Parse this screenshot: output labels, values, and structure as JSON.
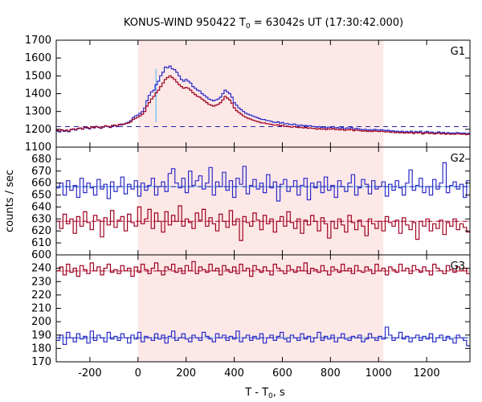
{
  "chart_data": {
    "type": "step-line",
    "title_main": "KONUS-WIND 950422 T",
    "title_sub": "0",
    "title_rest": " = 63042s UT (17:30:42.000)",
    "xlabel_main": "T - T",
    "xlabel_sub": "0",
    "xlabel_rest": ", s",
    "ylabel": "counts / sec",
    "xlim": [
      -340,
      1380
    ],
    "xticks": [
      -200,
      0,
      200,
      400,
      600,
      800,
      1000,
      1200
    ],
    "shaded_interval": [
      0,
      1020
    ],
    "colors": {
      "shade": "#fde8e8",
      "blue_series": "#2b2bc8",
      "red_series": "#a0001e",
      "fit": "#7fc6ec",
      "background_fit": "#e8a8c0"
    },
    "panels": [
      {
        "label": "G1",
        "ylim": [
          1100,
          1700
        ],
        "yticks": [
          1100,
          1200,
          1300,
          1400,
          1500,
          1600,
          1700
        ],
        "background_level": 1215,
        "series": [
          {
            "color": "blue",
            "step": 8,
            "values": [
              1190,
              1185,
              1195,
              1188,
              1192,
              1186,
              1198,
              1200,
              1195,
              1203,
              1205,
              1200,
              1210,
              1207,
              1202,
              1212,
              1208,
              1215,
              1210,
              1205,
              1212,
              1218,
              1215,
              1210,
              1220,
              1222,
              1215,
              1225,
              1230,
              1228,
              1235,
              1240,
              1250,
              1265,
              1275,
              1280,
              1290,
              1300,
              1320,
              1360,
              1390,
              1410,
              1420,
              1450,
              1470,
              1500,
              1520,
              1550,
              1545,
              1555,
              1540,
              1535,
              1520,
              1500,
              1480,
              1470,
              1480,
              1470,
              1460,
              1440,
              1430,
              1420,
              1415,
              1400,
              1390,
              1380,
              1370,
              1365,
              1360,
              1365,
              1370,
              1380,
              1400,
              1420,
              1410,
              1400,
              1380,
              1350,
              1335,
              1320,
              1310,
              1300,
              1290,
              1285,
              1280,
              1275,
              1270,
              1265,
              1260,
              1255,
              1255,
              1250,
              1248,
              1245,
              1240,
              1238,
              1242,
              1235,
              1238,
              1230,
              1232,
              1228,
              1226,
              1230,
              1225,
              1222,
              1224,
              1220,
              1222,
              1218,
              1220,
              1216,
              1215,
              1212,
              1215,
              1210,
              1213,
              1208,
              1212,
              1210,
              1215,
              1208,
              1210,
              1205,
              1210,
              1203,
              1208,
              1205,
              1210,
              1200,
              1205,
              1202,
              1200,
              1198,
              1200,
              1195,
              1198,
              1195,
              1200,
              1197,
              1195,
              1198,
              1195,
              1192,
              1195,
              1190,
              1192,
              1188,
              1190,
              1186,
              1190,
              1185,
              1188,
              1185,
              1190,
              1182,
              1188,
              1185,
              1190,
              1180,
              1185,
              1188,
              1182,
              1185,
              1180,
              1182,
              1186,
              1180,
              1183,
              1178,
              1182,
              1178,
              1180,
              1178,
              1182,
              1180,
              1178,
              1180,
              1176,
              1178
            ]
          },
          {
            "color": "red",
            "step": 8,
            "values": [
              1195,
              1190,
              1198,
              1192,
              1196,
              1190,
              1200,
              1203,
              1198,
              1205,
              1208,
              1202,
              1212,
              1210,
              1205,
              1215,
              1210,
              1217,
              1212,
              1208,
              1214,
              1220,
              1217,
              1212,
              1222,
              1224,
              1218,
              1228,
              1225,
              1230,
              1232,
              1236,
              1242,
              1255,
              1262,
              1268,
              1275,
              1285,
              1300,
              1330,
              1350,
              1370,
              1385,
              1405,
              1420,
              1440,
              1460,
              1480,
              1490,
              1500,
              1490,
              1480,
              1465,
              1450,
              1440,
              1430,
              1435,
              1430,
              1420,
              1405,
              1395,
              1385,
              1380,
              1370,
              1360,
              1350,
              1340,
              1335,
              1330,
              1335,
              1340,
              1350,
              1365,
              1385,
              1375,
              1365,
              1345,
              1320,
              1305,
              1295,
              1285,
              1275,
              1268,
              1262,
              1258,
              1252,
              1248,
              1244,
              1240,
              1236,
              1236,
              1232,
              1230,
              1228,
              1225,
              1223,
              1226,
              1220,
              1223,
              1216,
              1218,
              1214,
              1212,
              1216,
              1212,
              1210,
              1212,
              1208,
              1210,
              1206,
              1208,
              1205,
              1204,
              1201,
              1204,
              1200,
              1203,
              1198,
              1202,
              1200,
              1204,
              1198,
              1200,
              1196,
              1200,
              1194,
              1198,
              1196,
              1200,
              1192,
              1196,
              1194,
              1192,
              1190,
              1192,
              1188,
              1190,
              1187,
              1192,
              1189,
              1187,
              1190,
              1187,
              1185,
              1187,
              1183,
              1185,
              1181,
              1183,
              1180,
              1183,
              1179,
              1181,
              1179,
              1183,
              1176,
              1181,
              1179,
              1183,
              1174,
              1179,
              1181,
              1176,
              1179,
              1174,
              1176,
              1180,
              1174,
              1177,
              1172,
              1176,
              1172,
              1174,
              1172,
              1176,
              1174,
              1172,
              1174,
              1170,
              1172
            ]
          }
        ],
        "spike": {
          "x": 75,
          "y": 1540
        }
      },
      {
        "label": "G2",
        "ylim": [
          600,
          690
        ],
        "yticks": [
          600,
          610,
          620,
          630,
          640,
          650,
          660,
          670,
          680
        ],
        "blue_level": 657,
        "red_level": 628,
        "series": [
          {
            "color": "blue",
            "step": 10,
            "values": [
              656,
              660,
              650,
              662,
              654,
              658,
              648,
              664,
              652,
              660,
              656,
              650,
              663,
              655,
              659,
              647,
              661,
              653,
              657,
              665,
              651,
              659,
              655,
              662,
              649,
              660,
              654,
              658,
              664,
              650,
              657,
              661,
              653,
              668,
              672,
              660,
              656,
              664,
              652,
              670,
              658,
              662,
              666,
              655,
              660,
              673,
              650,
              661,
              657,
              669,
              654,
              662,
              648,
              664,
              659,
              674,
              651,
              658,
              663,
              655,
              660,
              652,
              667,
              656,
              661,
              645,
              659,
              663,
              653,
              657,
              662,
              650,
              658,
              664,
              646,
              660,
              656,
              661,
              652,
              665,
              654,
              658,
              648,
              662,
              657,
              653,
              660,
              667,
              650,
              656,
              663,
              659,
              651,
              662,
              655,
              657,
              661,
              649,
              659,
              654,
              662,
              656,
              650,
              660,
              671,
              654,
              658,
              664,
              652,
              657,
              650,
              663,
              655,
              660,
              677,
              652,
              658,
              661,
              655,
              659,
              648,
              662
            ]
          },
          {
            "color": "red",
            "step": 10,
            "values": [
              628,
              622,
              634,
              626,
              630,
              618,
              632,
              624,
              636,
              627,
              621,
              633,
              629,
              615,
              631,
              625,
              637,
              623,
              629,
              632,
              620,
              634,
              627,
              624,
              640,
              626,
              630,
              638,
              622,
              635,
              628,
              619,
              636,
              625,
              633,
              628,
              641,
              624,
              630,
              627,
              622,
              635,
              629,
              638,
              624,
              631,
              626,
              620,
              634,
              628,
              623,
              637,
              625,
              630,
              612,
              632,
              627,
              624,
              635,
              629,
              621,
              633,
              626,
              630,
              619,
              628,
              632,
              624,
              636,
              627,
              622,
              630,
              618,
              629,
              625,
              633,
              628,
              620,
              631,
              626,
              614,
              628,
              622,
              630,
              625,
              619,
              633,
              627,
              621,
              629,
              624,
              616,
              630,
              626,
              622,
              628,
              620,
              632,
              627,
              624,
              629,
              618,
              631,
              625,
              621,
              627,
              613,
              628,
              624,
              630,
              620,
              626,
              622,
              629,
              617,
              627,
              624,
              630,
              621,
              626,
              623,
              619
            ]
          }
        ]
      },
      {
        "label": "G3",
        "ylim": [
          170,
          250
        ],
        "yticks": [
          170,
          180,
          190,
          200,
          210,
          220,
          230,
          240
        ],
        "blue_level": 188,
        "red_level": 238,
        "series": [
          {
            "color": "red",
            "step": 10,
            "values": [
              238,
              241,
              235,
              243,
              237,
              240,
              234,
              242,
              239,
              236,
              244,
              238,
              241,
              235,
              240,
              243,
              237,
              239,
              236,
              242,
              238,
              240,
              234,
              241,
              237,
              243,
              239,
              236,
              240,
              244,
              238,
              235,
              241,
              239,
              243,
              237,
              240,
              236,
              242,
              238,
              245,
              236,
              241,
              239,
              237,
              243,
              238,
              240,
              235,
              242,
              239,
              237,
              241,
              236,
              243,
              238,
              240,
              234,
              242,
              239,
              237,
              241,
              238,
              235,
              243,
              240,
              238,
              236,
              242,
              239,
              237,
              241,
              238,
              244,
              236,
              240,
              239,
              237,
              242,
              238,
              235,
              241,
              239,
              237,
              243,
              238,
              240,
              236,
              242,
              238,
              237,
              241,
              239,
              236,
              243,
              238,
              240,
              235,
              241,
              239,
              237,
              243,
              238,
              240,
              236,
              242,
              239,
              237,
              241,
              238,
              235,
              243,
              240,
              238,
              236,
              242,
              239,
              237,
              241,
              238,
              240,
              236
            ]
          },
          {
            "color": "blue",
            "step": 10,
            "values": [
              186,
              190,
              183,
              192,
              188,
              185,
              191,
              187,
              189,
              184,
              193,
              186,
              190,
              188,
              185,
              192,
              187,
              189,
              186,
              191,
              188,
              184,
              190,
              187,
              192,
              185,
              189,
              188,
              186,
              191,
              187,
              190,
              184,
              189,
              193,
              186,
              188,
              191,
              187,
              185,
              190,
              188,
              186,
              192,
              189,
              187,
              185,
              191,
              188,
              190,
              186,
              189,
              187,
              193,
              185,
              188,
              190,
              186,
              189,
              187,
              191,
              184,
              188,
              190,
              186,
              189,
              192,
              187,
              185,
              190,
              188,
              186,
              191,
              187,
              189,
              185,
              188,
              192,
              186,
              189,
              187,
              190,
              185,
              188,
              191,
              187,
              186,
              189,
              188,
              190,
              185,
              187,
              191,
              188,
              186,
              189,
              187,
              196,
              190,
              186,
              188,
              192,
              187,
              189,
              185,
              188,
              190,
              186,
              189,
              187,
              191,
              185,
              188,
              190,
              186,
              189,
              187,
              184,
              190,
              188,
              186,
              182
            ]
          }
        ]
      }
    ]
  }
}
